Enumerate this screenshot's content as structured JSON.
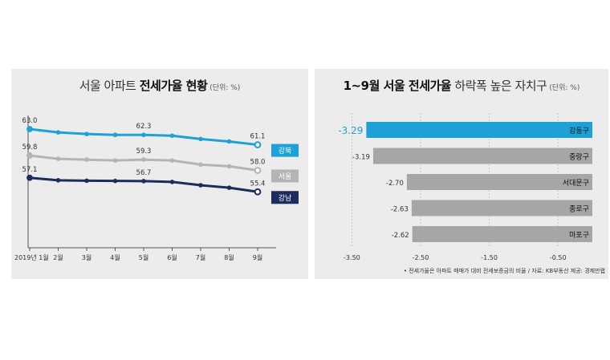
{
  "left_title": {
    "normal": "서울 아파트",
    "bold": "전세가율 현황",
    "unit": "(단위: %)"
  },
  "right_title": {
    "bold": "1~9월 서울 전세가율",
    "normal": "하락폭 높은 자치구",
    "unit": "(단위: %)"
  },
  "footnote": "• 전세가율은 아파트 매매가 대비 전세보증금의 비율 / 자료: KB부동산 제공: 경제만랩",
  "colors": {
    "gangbuk": "#1ea1d5",
    "seoul": "#b4b4b4",
    "gangnam": "#1c2c5c",
    "bar_highlight": "#1ea1d5",
    "bar_default": "#a6a6a6",
    "panel_bg": "#ececec"
  },
  "chart_data": [
    {
      "type": "line",
      "categories": [
        "2019년 1월",
        "2월",
        "3월",
        "4월",
        "5월",
        "6월",
        "7월",
        "8월",
        "9월"
      ],
      "series": [
        {
          "name": "강북",
          "values": [
            63.0,
            62.6,
            62.4,
            62.3,
            62.3,
            62.2,
            61.8,
            61.5,
            61.1
          ],
          "labels": [
            "63.0",
            "",
            "",
            "",
            "62.3",
            "",
            "",
            "",
            "61.1"
          ]
        },
        {
          "name": "서울",
          "values": [
            59.8,
            59.4,
            59.3,
            59.2,
            59.3,
            59.2,
            58.7,
            58.5,
            58.0
          ],
          "labels": [
            "59.8",
            "",
            "",
            "",
            "59.3",
            "",
            "",
            "",
            "58.0"
          ]
        },
        {
          "name": "강남",
          "values": [
            57.1,
            56.8,
            56.75,
            56.72,
            56.7,
            56.6,
            56.2,
            55.9,
            55.4
          ],
          "labels": [
            "57.1",
            "",
            "",
            "",
            "56.7",
            "",
            "",
            "",
            "55.4"
          ]
        }
      ]
    },
    {
      "type": "bar",
      "orientation": "horizontal",
      "categories": [
        "강동구",
        "중랑구",
        "서대문구",
        "종로구",
        "마포구"
      ],
      "values": [
        -3.29,
        -3.19,
        -2.7,
        -2.63,
        -2.62
      ],
      "value_labels": [
        "-3.29",
        "-3.19",
        "-2.70",
        "-2.63",
        "-2.62"
      ],
      "xticks": [
        "-3.50",
        "-2.50",
        "-1.50",
        "-0.50"
      ],
      "xlim": [
        -3.75,
        -0.0
      ],
      "highlight": "강동구"
    }
  ]
}
